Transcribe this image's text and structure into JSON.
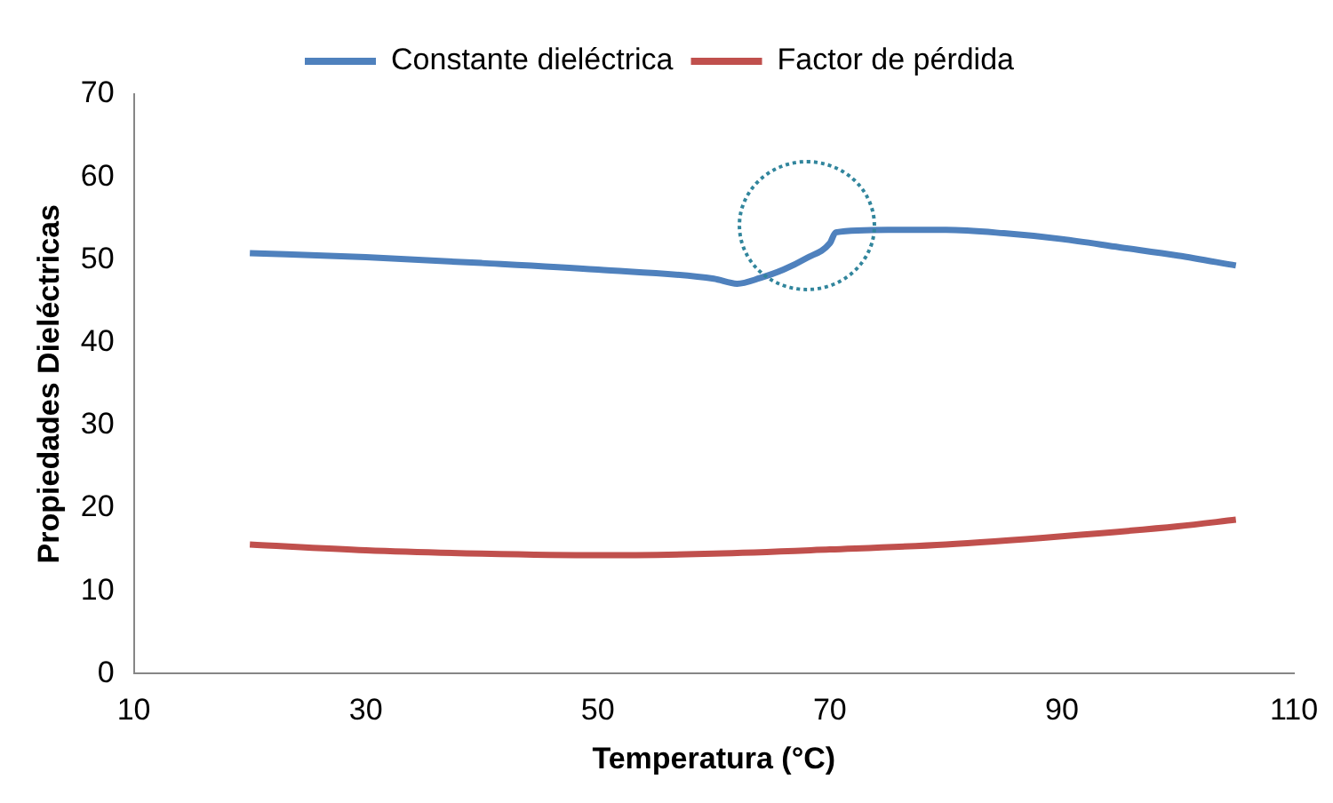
{
  "chart_data": {
    "type": "line",
    "xlabel": "Temperatura (°C)",
    "ylabel": "Propiedades Dieléctricas",
    "xlim": [
      10,
      110
    ],
    "xticks": [
      10,
      30,
      50,
      70,
      90,
      110
    ],
    "ylim": [
      0,
      70
    ],
    "yticks": [
      0,
      10,
      20,
      30,
      40,
      50,
      60,
      70
    ],
    "grid": false,
    "legend": "top",
    "marker": "none",
    "line_style": "solid",
    "series": [
      {
        "name": "Constante dieléctrica",
        "color": "#4f81bd",
        "x": [
          20,
          30,
          40,
          50,
          60,
          62,
          64,
          66,
          68,
          70,
          70.5,
          75,
          80,
          85,
          90,
          95,
          100,
          105
        ],
        "values": [
          50.8,
          50.3,
          49.6,
          48.8,
          47.7,
          47.1,
          47.8,
          48.8,
          50.2,
          52.0,
          53.3,
          53.6,
          53.6,
          53.2,
          52.5,
          51.5,
          50.5,
          49.3
        ]
      },
      {
        "name": "Factor de pérdida",
        "color": "#c0504d",
        "x": [
          20,
          30,
          40,
          50,
          60,
          70,
          80,
          90,
          100,
          105
        ],
        "values": [
          15.6,
          14.9,
          14.5,
          14.3,
          14.5,
          15.0,
          15.6,
          16.6,
          17.8,
          18.6
        ]
      }
    ]
  }
}
